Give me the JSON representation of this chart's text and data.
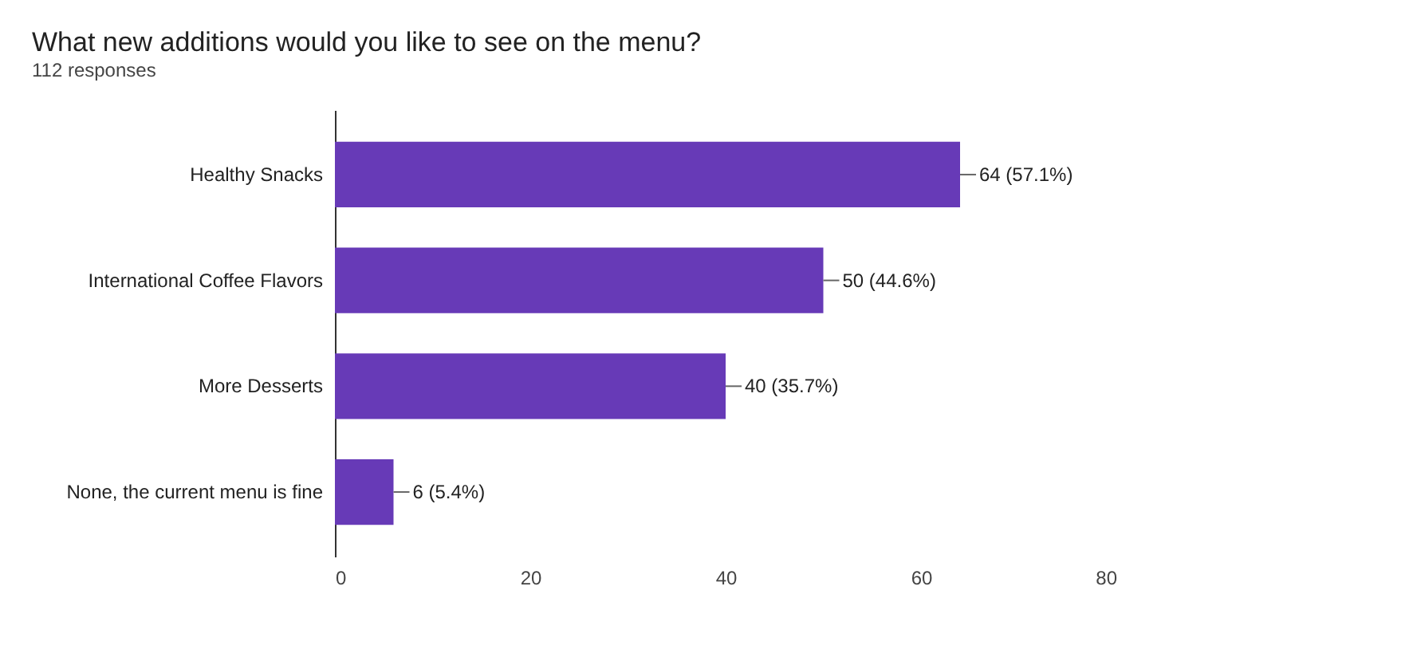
{
  "chart_data": {
    "type": "bar",
    "orientation": "horizontal",
    "title": "What new additions would you like to see on the menu?",
    "subtitle": "112 responses",
    "categories": [
      "Healthy Snacks",
      "International Coffee Flavors",
      "More Desserts",
      "None, the current menu is fine"
    ],
    "values": [
      64,
      50,
      40,
      6
    ],
    "value_labels": [
      "64 (57.1%)",
      "50 (44.6%)",
      "40 (35.7%)",
      "6 (5.4%)"
    ],
    "color": "#673ab7",
    "xlim": [
      0,
      80
    ],
    "xticks": [
      0,
      20,
      40,
      60,
      80
    ],
    "grid": false
  }
}
